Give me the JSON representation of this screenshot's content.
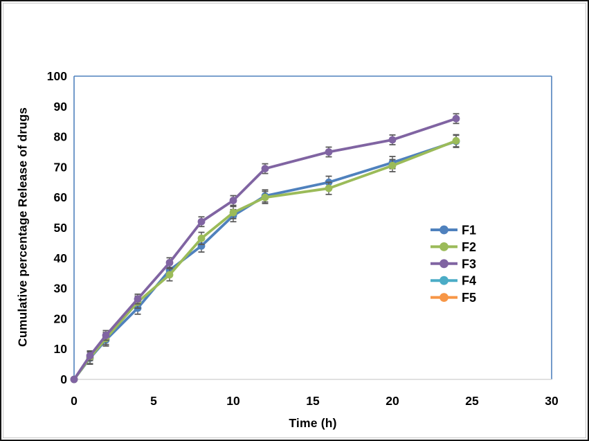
{
  "chart_data": {
    "type": "line",
    "title": "",
    "xlabel": "Time (h)",
    "ylabel": "Cumulative percentage Release of drugs",
    "xlim": [
      0,
      30
    ],
    "ylim": [
      0,
      100
    ],
    "x_ticks": [
      0,
      5,
      10,
      15,
      20,
      25,
      30
    ],
    "y_ticks": [
      0,
      10,
      20,
      30,
      40,
      50,
      60,
      70,
      80,
      90,
      100
    ],
    "grid": false,
    "x": [
      0,
      1,
      2,
      4,
      6,
      8,
      10,
      12,
      16,
      20,
      24
    ],
    "series": [
      {
        "name": "F1",
        "color": "#4F81BD",
        "plotted": true,
        "error": 2,
        "values": [
          0,
          7,
          13,
          23.5,
          36,
          44,
          54,
          60.5,
          65,
          71.5,
          78.5
        ]
      },
      {
        "name": "F2",
        "color": "#9BBB59",
        "plotted": true,
        "error": 2,
        "values": [
          0,
          7.2,
          13.5,
          25.5,
          34.5,
          46.5,
          55,
          60,
          63,
          70.5,
          78.7
        ]
      },
      {
        "name": "F3",
        "color": "#8064A2",
        "plotted": true,
        "error": 1.6,
        "values": [
          0,
          7.8,
          14.5,
          26.5,
          38.5,
          52,
          59,
          69.5,
          75,
          79,
          86
        ]
      },
      {
        "name": "F4",
        "color": "#4BACC6",
        "plotted": false,
        "error": 0,
        "values": []
      },
      {
        "name": "F5",
        "color": "#F79646",
        "plotted": false,
        "error": 0,
        "values": []
      }
    ],
    "legend_position": "right-middle",
    "legend_labels": [
      "F1",
      "F2",
      "F3",
      "F4",
      "F5"
    ],
    "colors": {
      "plot_border": "#4F81BD",
      "baseline": "#D6D6D6",
      "error_bar": "#595959",
      "text": "#000000"
    }
  }
}
